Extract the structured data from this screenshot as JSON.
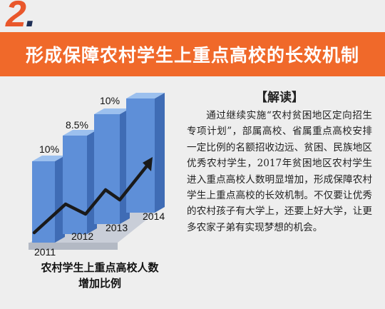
{
  "section": {
    "number": "2",
    "dot": "."
  },
  "banner": {
    "title": "形成保障农村学生上重点高校的长效机制"
  },
  "chart_data": {
    "type": "bar",
    "categories": [
      "2011",
      "2012",
      "2013",
      "2014"
    ],
    "values": [
      10,
      8.5,
      10,
      null
    ],
    "value_labels": [
      "10%",
      "8.5%",
      "10%",
      ""
    ],
    "caption_line1": "农村学生上重点高校人数",
    "caption_line2": "增加比例"
  },
  "article": {
    "heading": "【解读】",
    "body": "通过继续实施“农村贫困地区定向招生专项计划”，部属高校、省属重点高校安排一定比例的名额招收边远、贫困、民族地区优秀农村学生，2017年贫困地区农村学生进入重点高校人数明显增加，形成保障农村学生上重点高校的长效机制。不仅要让优秀的农村孩子有大学上，还要上好大学，让更多农家子弟有实现梦想的机会。"
  },
  "colors": {
    "banner": "#f0692a",
    "number": "#e9572b",
    "bar_front": "#5e8fd8",
    "bar_side": "#3f6cb5",
    "bar_top": "#9cc0ee"
  }
}
